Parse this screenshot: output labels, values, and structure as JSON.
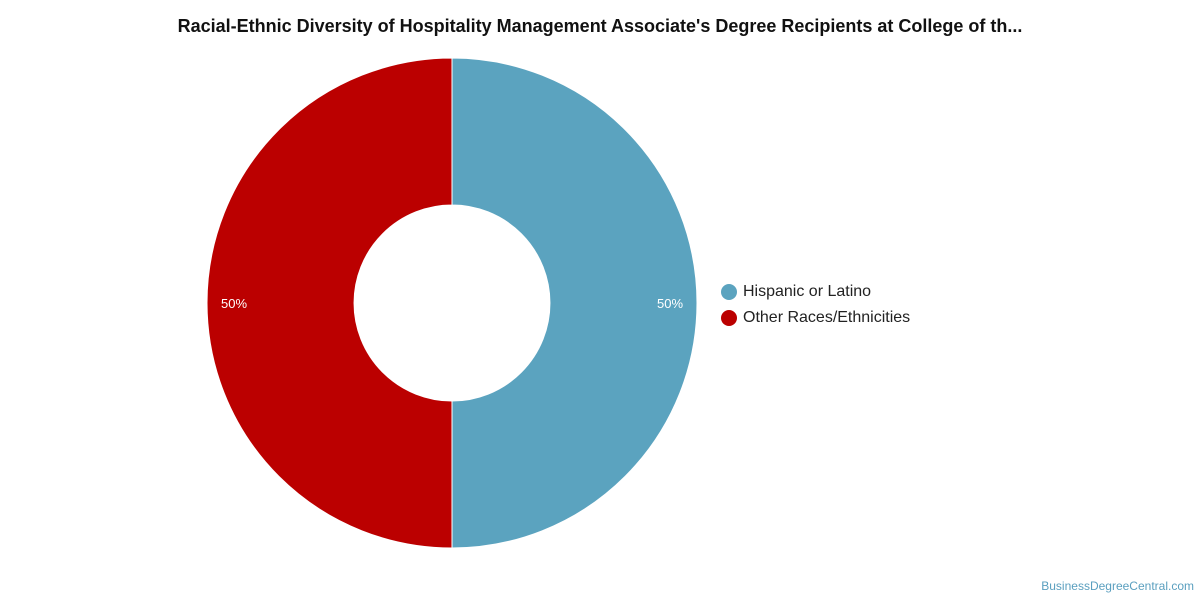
{
  "chart_data": {
    "type": "pie",
    "title": "Racial-Ethnic Diversity of Hospitality Management Associate's Degree Recipients at College of th...",
    "donut": true,
    "legend_position": "right",
    "slices": [
      {
        "label": "Hispanic or Latino",
        "value": 50,
        "display": "50%",
        "color": "#5ba3bf"
      },
      {
        "label": "Other Races/Ethnicities",
        "value": 50,
        "display": "50%",
        "color": "#bb0000"
      }
    ]
  },
  "watermark": "BusinessDegreeCentral.com"
}
